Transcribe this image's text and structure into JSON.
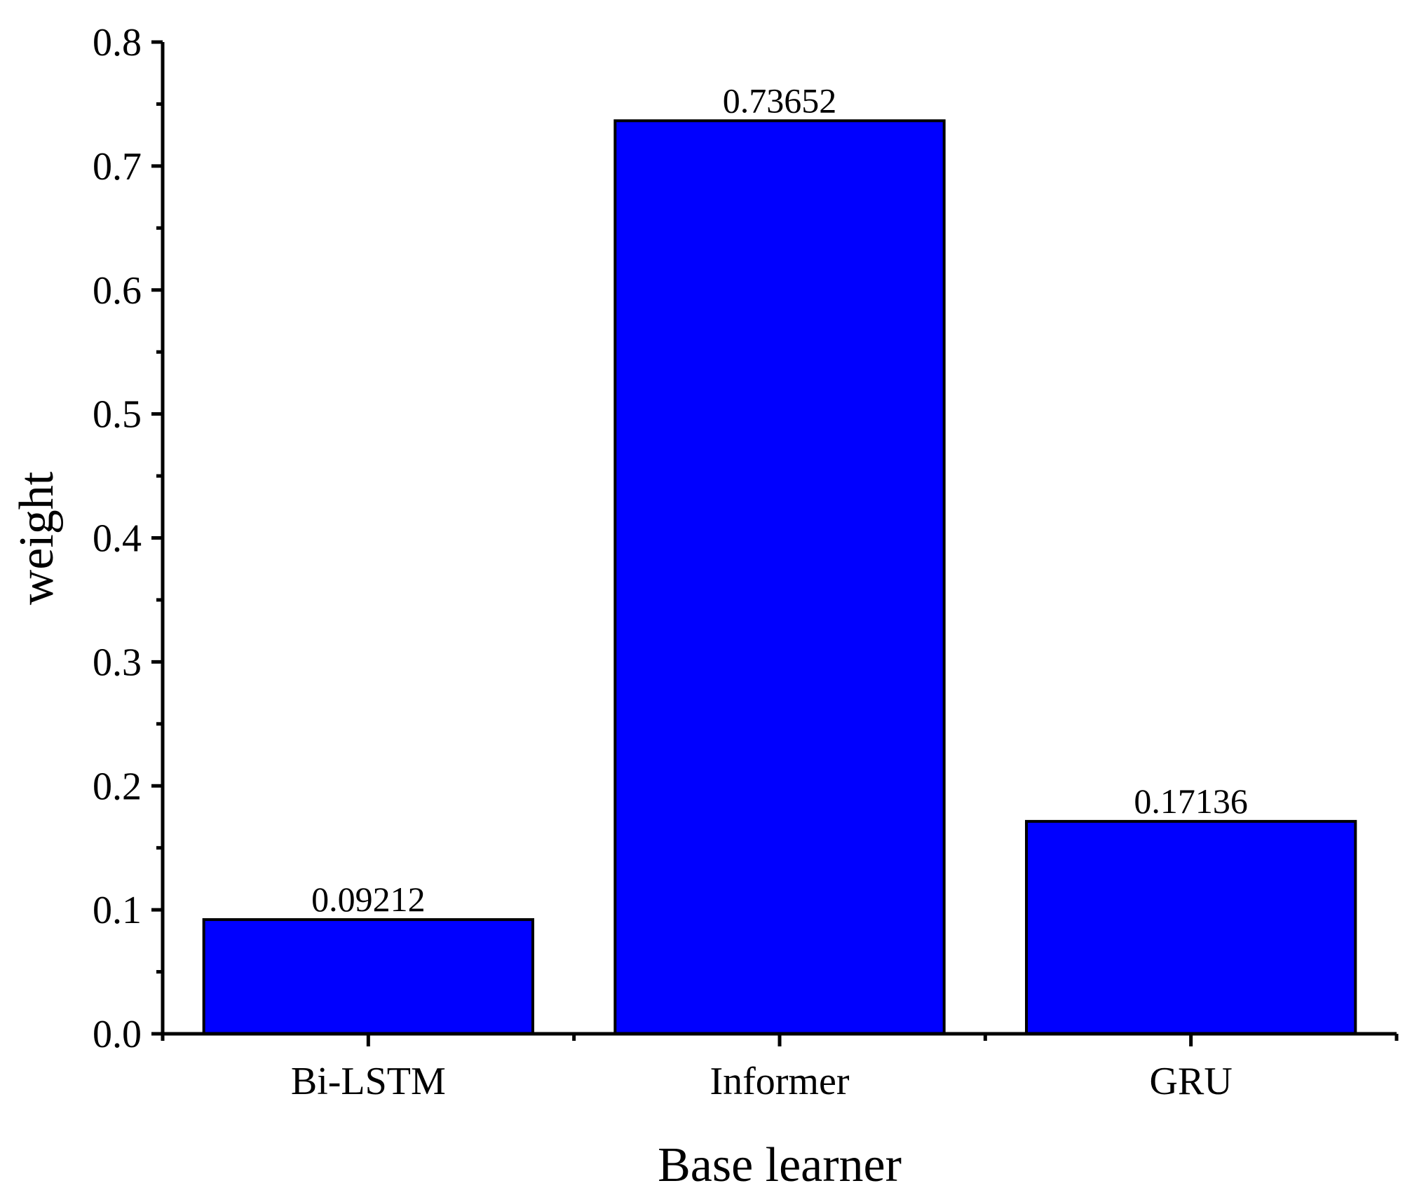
{
  "chart_data": {
    "type": "bar",
    "categories": [
      "Bi-LSTM",
      "Informer",
      "GRU"
    ],
    "values": [
      0.09212,
      0.73652,
      0.17136
    ],
    "data_labels": [
      "0.09212",
      "0.73652",
      "0.17136"
    ],
    "title": "",
    "xlabel": "Base learner",
    "ylabel": "weight",
    "ylim": [
      0,
      0.8
    ],
    "yticks": [
      "0.0",
      "0.1",
      "0.2",
      "0.3",
      "0.4",
      "0.5",
      "0.6",
      "0.7",
      "0.8"
    ],
    "bar_color": "#0000ff",
    "grid": false,
    "legend": "none"
  }
}
